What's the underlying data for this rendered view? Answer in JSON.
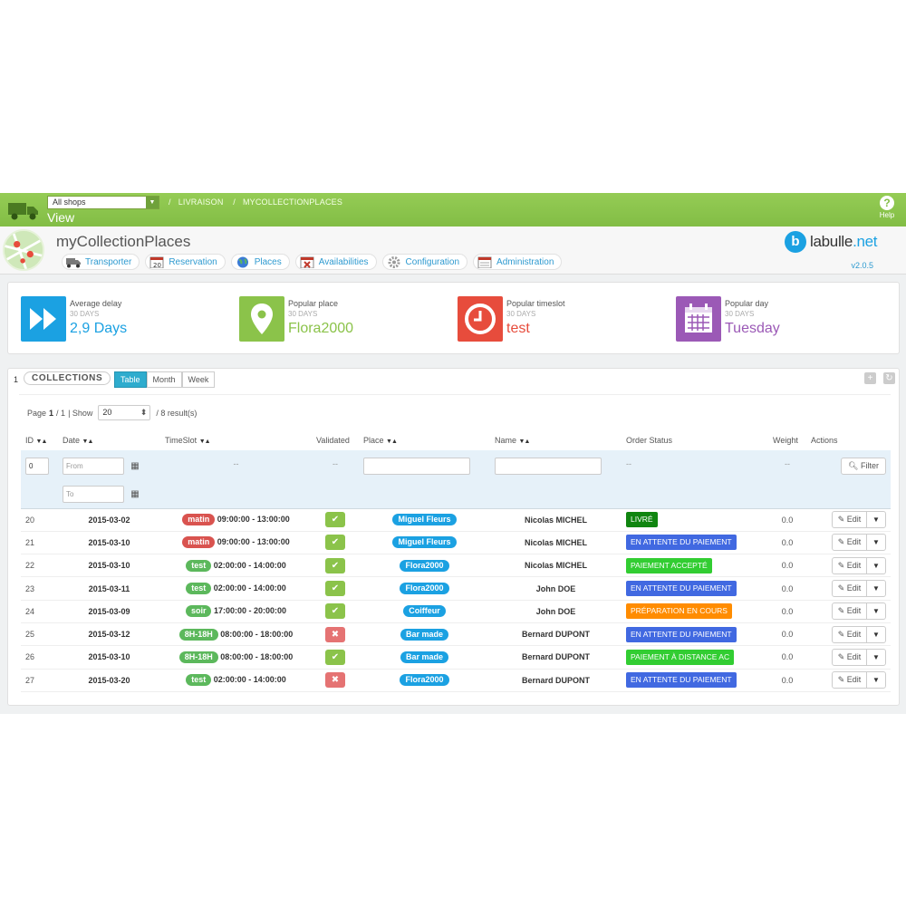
{
  "topbar": {
    "shop_select": "All shops",
    "breadcrumb": [
      "LIVRAISON",
      "MYCOLLECTIONPLACES"
    ],
    "title": "View",
    "help_label": "Help"
  },
  "module": {
    "title": "myCollectionPlaces",
    "tabs": [
      {
        "label": "Transporter",
        "icon": "truck-icon"
      },
      {
        "label": "Reservation",
        "icon": "calendar-icon"
      },
      {
        "label": "Places",
        "icon": "globe-icon"
      },
      {
        "label": "Availabilities",
        "icon": "calendar-x-icon"
      },
      {
        "label": "Configuration",
        "icon": "gear-icon"
      },
      {
        "label": "Administration",
        "icon": "calendar-admin-icon"
      }
    ],
    "brand": {
      "prefix": "labulle",
      "suffix": ".net",
      "letter": "b"
    },
    "version": "v2.0.5"
  },
  "kpis": [
    {
      "label": "Average delay",
      "period": "30 DAYS",
      "value": "2,9 Days",
      "color": "#1ba1e2",
      "icon": "fast-forward-icon"
    },
    {
      "label": "Popular place",
      "period": "30 DAYS",
      "value": "Flora2000",
      "color": "#8bc34a",
      "icon": "map-pin-icon"
    },
    {
      "label": "Popular timeslot",
      "period": "30 DAYS",
      "value": "test",
      "color": "#e74c3c",
      "icon": "clock-icon"
    },
    {
      "label": "Popular day",
      "period": "30 DAYS",
      "value": "Tuesday",
      "color": "#9b59b6",
      "icon": "calendar-icon"
    }
  ],
  "collections": {
    "count": "1",
    "title": "COLLECTIONS",
    "views": [
      "Table",
      "Month",
      "Week"
    ],
    "pager": {
      "page_label": "Page",
      "page": "1",
      "of": "/ 1",
      "show_label": "| Show",
      "show_value": "20",
      "results": "/ 8 result(s)"
    },
    "columns": {
      "id": "ID",
      "date": "Date",
      "timeslot": "TimeSlot",
      "validated": "Validated",
      "place": "Place",
      "name": "Name",
      "order_status": "Order Status",
      "weight": "Weight",
      "actions": "Actions"
    },
    "filter": {
      "id_value": "0",
      "from_placeholder": "From",
      "to_placeholder": "To",
      "dash": "--",
      "filter_button": "Filter"
    },
    "edit_label": "Edit",
    "rows": [
      {
        "id": "20",
        "date": "2015-03-02",
        "slot": "matin",
        "slot_color": "#d9534f",
        "time": "09:00:00 - 13:00:00",
        "validated": true,
        "place": "Miguel Fleurs",
        "name": "Nicolas MICHEL",
        "status": "LIVRÉ",
        "status_color": "#108510",
        "weight": "0.0"
      },
      {
        "id": "21",
        "date": "2015-03-10",
        "slot": "matin",
        "slot_color": "#d9534f",
        "time": "09:00:00 - 13:00:00",
        "validated": true,
        "place": "Miguel Fleurs",
        "name": "Nicolas MICHEL",
        "status": "EN ATTENTE DU PAIEMENT",
        "status_color": "#4169e1",
        "weight": "0.0"
      },
      {
        "id": "22",
        "date": "2015-03-10",
        "slot": "test",
        "slot_color": "#5cb85c",
        "time": "02:00:00 - 14:00:00",
        "validated": true,
        "place": "Flora2000",
        "name": "Nicolas MICHEL",
        "status": "PAIEMENT ACCEPTÉ",
        "status_color": "#32cd32",
        "weight": "0.0"
      },
      {
        "id": "23",
        "date": "2015-03-11",
        "slot": "test",
        "slot_color": "#5cb85c",
        "time": "02:00:00 - 14:00:00",
        "validated": true,
        "place": "Flora2000",
        "name": "John DOE",
        "status": "EN ATTENTE DU PAIEMENT",
        "status_color": "#4169e1",
        "weight": "0.0"
      },
      {
        "id": "24",
        "date": "2015-03-09",
        "slot": "soir",
        "slot_color": "#5cb85c",
        "time": "17:00:00 - 20:00:00",
        "validated": true,
        "place": "Coiffeur",
        "name": "John DOE",
        "status": "PRÉPARATION EN COURS",
        "status_color": "#ff8c00",
        "weight": "0.0"
      },
      {
        "id": "25",
        "date": "2015-03-12",
        "slot": "8H-18H",
        "slot_color": "#5cb85c",
        "time": "08:00:00 - 18:00:00",
        "validated": false,
        "place": "Bar made",
        "name": "Bernard DUPONT",
        "status": "EN ATTENTE DU PAIEMENT",
        "status_color": "#4169e1",
        "weight": "0.0"
      },
      {
        "id": "26",
        "date": "2015-03-10",
        "slot": "8H-18H",
        "slot_color": "#5cb85c",
        "time": "08:00:00 - 18:00:00",
        "validated": true,
        "place": "Bar made",
        "name": "Bernard DUPONT",
        "status": "PAIEMENT À DISTANCE AC",
        "status_color": "#32cd32",
        "weight": "0.0"
      },
      {
        "id": "27",
        "date": "2015-03-20",
        "slot": "test",
        "slot_color": "#5cb85c",
        "time": "02:00:00 - 14:00:00",
        "validated": false,
        "place": "Flora2000",
        "name": "Bernard DUPONT",
        "status": "EN ATTENTE DU PAIEMENT",
        "status_color": "#4169e1",
        "weight": "0.0"
      }
    ]
  }
}
